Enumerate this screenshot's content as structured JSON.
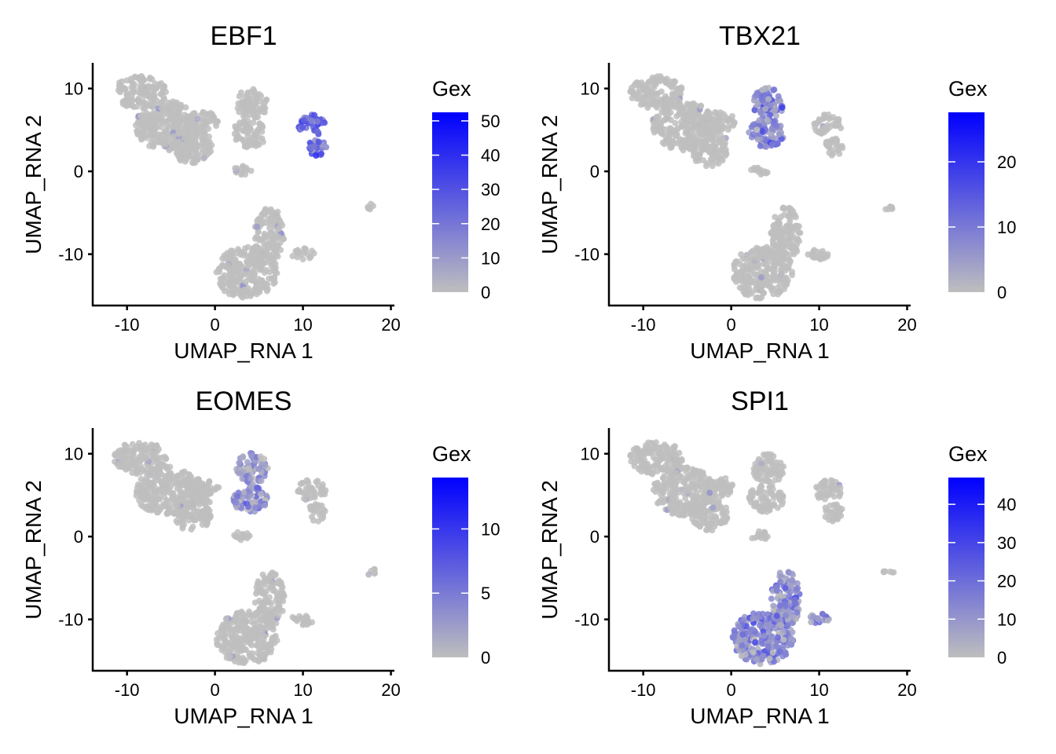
{
  "chart_data": [
    {
      "type": "scatter",
      "title": "EBF1",
      "xlabel": "UMAP_RNA 1",
      "ylabel": "UMAP_RNA 2",
      "xlim": [
        -13.9,
        20.4
      ],
      "ylim": [
        -16.2,
        13.1
      ],
      "xticks": [
        "-10",
        "0",
        "10",
        "20"
      ],
      "yticks": [
        "10",
        "0",
        "-10"
      ],
      "legend": {
        "title": "Gex",
        "ticks": [
          "0",
          "10",
          "20",
          "30",
          "40",
          "50"
        ],
        "range": [
          0,
          52.5
        ]
      },
      "high_cluster": "C",
      "high_level": 0.45
    },
    {
      "type": "scatter",
      "title": "TBX21",
      "xlabel": "UMAP_RNA 1",
      "ylabel": "UMAP_RNA 2",
      "xlim": [
        -13.9,
        20.4
      ],
      "ylim": [
        -16.2,
        13.1
      ],
      "xticks": [
        "-10",
        "0",
        "10",
        "20"
      ],
      "yticks": [
        "10",
        "0",
        "-10"
      ],
      "legend": {
        "title": "Gex",
        "ticks": [
          "0",
          "10",
          "20"
        ],
        "range": [
          0,
          27.6
        ]
      },
      "high_cluster": "B",
      "high_level": 0.3
    },
    {
      "type": "scatter",
      "title": "EOMES",
      "xlabel": "UMAP_RNA 1",
      "ylabel": "UMAP_RNA 2",
      "xlim": [
        -13.9,
        20.4
      ],
      "ylim": [
        -16.2,
        13.1
      ],
      "xticks": [
        "-10",
        "0",
        "10",
        "20"
      ],
      "yticks": [
        "10",
        "0",
        "-10"
      ],
      "legend": {
        "title": "Gex",
        "ticks": [
          "0",
          "5",
          "10"
        ],
        "range": [
          0,
          14
        ]
      },
      "high_cluster": "B",
      "high_level": 0.2
    },
    {
      "type": "scatter",
      "title": "SPI1",
      "xlabel": "UMAP_RNA 1",
      "ylabel": "UMAP_RNA 2",
      "xlim": [
        -13.9,
        20.4
      ],
      "ylim": [
        -16.2,
        13.1
      ],
      "xticks": [
        "-10",
        "0",
        "10",
        "20"
      ],
      "yticks": [
        "10",
        "0",
        "-10"
      ],
      "legend": {
        "title": "Gex",
        "ticks": [
          "0",
          "10",
          "20",
          "30",
          "40"
        ],
        "range": [
          0,
          47
        ]
      },
      "high_cluster": "D",
      "high_level": 0.25
    }
  ],
  "clusters": {
    "A": [
      [
        -8.5,
        9.5,
        3.0,
        2.0
      ],
      [
        -5.5,
        5.5,
        3.5,
        3.0
      ],
      [
        -2.5,
        3.0,
        2.2,
        2.4
      ],
      [
        -1.5,
        6.0,
        2.0,
        1.2
      ]
    ],
    "B": [
      [
        4.2,
        8.2,
        1.8,
        1.9
      ],
      [
        4.0,
        4.6,
        2.0,
        1.7
      ]
    ],
    "S": [
      [
        3.2,
        0.1,
        1.1,
        0.6
      ]
    ],
    "C": [
      [
        11.0,
        5.6,
        1.6,
        1.3
      ],
      [
        11.6,
        2.9,
        1.1,
        1.1
      ]
    ],
    "D": [
      [
        3.6,
        -12.2,
        3.5,
        3.2
      ],
      [
        6.2,
        -7.5,
        1.7,
        3.4
      ],
      [
        10.0,
        -10.0,
        1.3,
        0.7
      ]
    ],
    "E": [
      [
        17.9,
        -4.3,
        0.7,
        0.4
      ]
    ]
  },
  "colors": {
    "low": "#bebebe",
    "high": "#0000ff",
    "axis": "#000000"
  }
}
